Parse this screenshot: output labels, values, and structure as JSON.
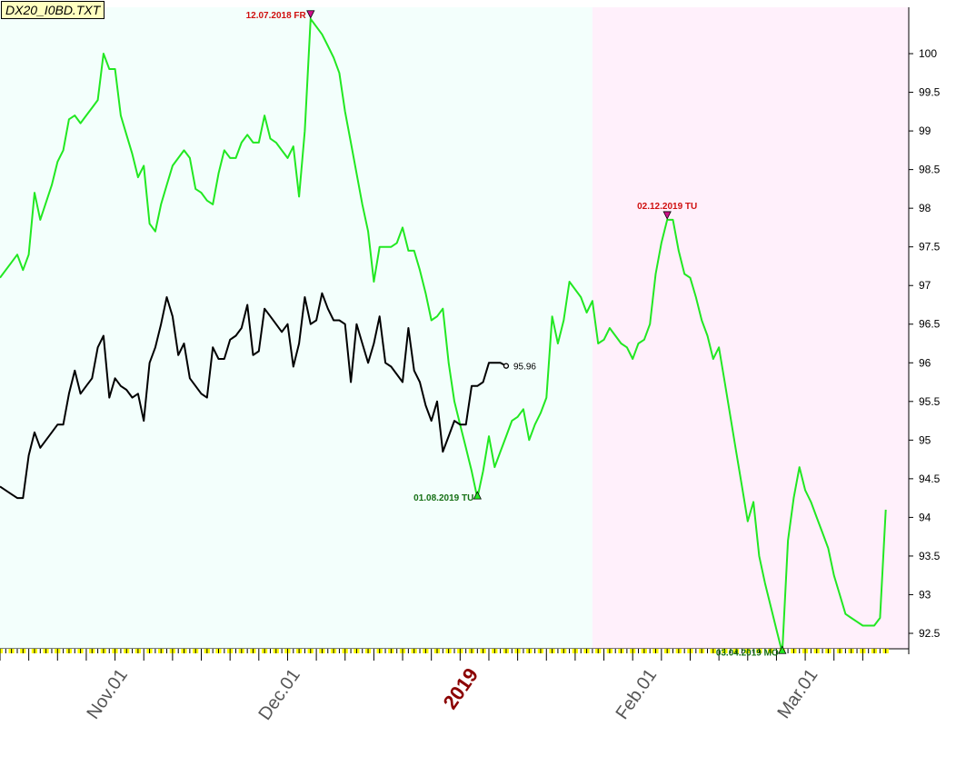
{
  "chart_title": "DX20_I0BD.TXT",
  "colors": {
    "zone_left": "#f3fffc",
    "zone_right": "#fff0fb",
    "green_line": "#22e822",
    "black_line": "#000000",
    "high_label": "#d01010",
    "low_label": "#157015",
    "year_label": "#8b0000",
    "month_label": "#555555",
    "tick_yellow": "#ffff00"
  },
  "chart_data": {
    "type": "line",
    "title": "DX20_I0BD.TXT",
    "xlabel": "",
    "ylabel": "",
    "ylim": [
      92.3,
      100.6
    ],
    "grid": false,
    "y_ticks": [
      "92.5",
      "93",
      "93.5",
      "94",
      "94.5",
      "95",
      "95.5",
      "96",
      "96.5",
      "97",
      "97.5",
      "98",
      "98.5",
      "99",
      "99.5",
      "100"
    ],
    "x_labels": [
      {
        "text": "Nov.01",
        "x": 11,
        "emphasis": false
      },
      {
        "text": "Dec.01",
        "x": 41,
        "emphasis": false
      },
      {
        "text": "2019",
        "x": 72,
        "emphasis": true
      },
      {
        "text": "Feb.01",
        "x": 103,
        "emphasis": false
      },
      {
        "text": "Mar.01",
        "x": 131,
        "emphasis": false
      }
    ],
    "x_range": [
      -10,
      148
    ],
    "shaded_zones": [
      {
        "from": -10,
        "to": 93,
        "color": "zone_left"
      },
      {
        "from": 93,
        "to": 148,
        "color": "zone_right"
      }
    ],
    "series": [
      {
        "color": "green_line",
        "points": [
          [
            -10,
            97.1
          ],
          [
            -8,
            97.3
          ],
          [
            -7,
            97.4
          ],
          [
            -6,
            97.2
          ],
          [
            -5,
            97.4
          ],
          [
            -4,
            98.2
          ],
          [
            -3,
            97.85
          ],
          [
            -1,
            98.3
          ],
          [
            0,
            98.6
          ],
          [
            1,
            98.75
          ],
          [
            2,
            99.15
          ],
          [
            3,
            99.2
          ],
          [
            4,
            99.1
          ],
          [
            5,
            99.2
          ],
          [
            6,
            99.3
          ],
          [
            7,
            99.4
          ],
          [
            8,
            100.0
          ],
          [
            9,
            99.8
          ],
          [
            10,
            99.8
          ],
          [
            11,
            99.2
          ],
          [
            12,
            98.95
          ],
          [
            13,
            98.7
          ],
          [
            14,
            98.4
          ],
          [
            15,
            98.55
          ],
          [
            16,
            97.8
          ],
          [
            17,
            97.7
          ],
          [
            18,
            98.05
          ],
          [
            19,
            98.3
          ],
          [
            20,
            98.55
          ],
          [
            21,
            98.65
          ],
          [
            22,
            98.75
          ],
          [
            23,
            98.65
          ],
          [
            24,
            98.25
          ],
          [
            25,
            98.2
          ],
          [
            26,
            98.1
          ],
          [
            27,
            98.05
          ],
          [
            28,
            98.45
          ],
          [
            29,
            98.75
          ],
          [
            30,
            98.65
          ],
          [
            31,
            98.65
          ],
          [
            32,
            98.85
          ],
          [
            33,
            98.95
          ],
          [
            34,
            98.85
          ],
          [
            35,
            98.85
          ],
          [
            36,
            99.2
          ],
          [
            37,
            98.9
          ],
          [
            38,
            98.85
          ],
          [
            39,
            98.75
          ],
          [
            40,
            98.65
          ],
          [
            41,
            98.8
          ],
          [
            42,
            98.15
          ],
          [
            43,
            99.0
          ],
          [
            44,
            100.45
          ],
          [
            45,
            100.35
          ],
          [
            46,
            100.25
          ],
          [
            47,
            100.1
          ],
          [
            48,
            99.95
          ],
          [
            49,
            99.75
          ],
          [
            50,
            99.25
          ],
          [
            51,
            98.85
          ],
          [
            52,
            98.45
          ],
          [
            53,
            98.05
          ],
          [
            54,
            97.7
          ],
          [
            55,
            97.05
          ],
          [
            56,
            97.5
          ],
          [
            57,
            97.5
          ],
          [
            58,
            97.5
          ],
          [
            59,
            97.55
          ],
          [
            60,
            97.75
          ],
          [
            61,
            97.45
          ],
          [
            62,
            97.45
          ],
          [
            63,
            97.2
          ],
          [
            64,
            96.9
          ],
          [
            65,
            96.55
          ],
          [
            66,
            96.6
          ],
          [
            67,
            96.7
          ],
          [
            68,
            96.0
          ],
          [
            69,
            95.5
          ],
          [
            70,
            95.2
          ],
          [
            71,
            94.9
          ],
          [
            72,
            94.6
          ],
          [
            73,
            94.25
          ],
          [
            74,
            94.6
          ],
          [
            75,
            95.05
          ],
          [
            76,
            94.65
          ],
          [
            77,
            94.85
          ],
          [
            78,
            95.05
          ],
          [
            79,
            95.25
          ],
          [
            80,
            95.3
          ],
          [
            81,
            95.4
          ],
          [
            82,
            95.0
          ],
          [
            83,
            95.2
          ],
          [
            84,
            95.35
          ],
          [
            85,
            95.55
          ],
          [
            86,
            96.6
          ],
          [
            87,
            96.25
          ],
          [
            88,
            96.55
          ],
          [
            89,
            97.05
          ],
          [
            90,
            96.95
          ],
          [
            91,
            96.85
          ],
          [
            92,
            96.65
          ],
          [
            93,
            96.8
          ],
          [
            94,
            96.25
          ],
          [
            95,
            96.3
          ],
          [
            96,
            96.45
          ],
          [
            97,
            96.35
          ],
          [
            98,
            96.25
          ],
          [
            99,
            96.2
          ],
          [
            100,
            96.05
          ],
          [
            101,
            96.25
          ],
          [
            102,
            96.3
          ],
          [
            103,
            96.5
          ],
          [
            104,
            97.15
          ],
          [
            105,
            97.55
          ],
          [
            106,
            97.85
          ],
          [
            107,
            97.85
          ],
          [
            108,
            97.45
          ],
          [
            109,
            97.15
          ],
          [
            110,
            97.1
          ],
          [
            111,
            96.85
          ],
          [
            112,
            96.55
          ],
          [
            113,
            96.35
          ],
          [
            114,
            96.05
          ],
          [
            115,
            96.2
          ],
          [
            116,
            95.75
          ],
          [
            117,
            95.3
          ],
          [
            118,
            94.85
          ],
          [
            119,
            94.4
          ],
          [
            120,
            93.95
          ],
          [
            121,
            94.2
          ],
          [
            122,
            93.5
          ],
          [
            123,
            93.15
          ],
          [
            124,
            92.85
          ],
          [
            125,
            92.55
          ],
          [
            126,
            92.25
          ],
          [
            127,
            93.7
          ],
          [
            128,
            94.25
          ],
          [
            129,
            94.65
          ],
          [
            130,
            94.35
          ],
          [
            131,
            94.2
          ],
          [
            132,
            94.0
          ],
          [
            133,
            93.8
          ],
          [
            134,
            93.6
          ],
          [
            135,
            93.25
          ],
          [
            136,
            93.0
          ],
          [
            137,
            92.75
          ],
          [
            138,
            92.7
          ],
          [
            139,
            92.65
          ],
          [
            140,
            92.6
          ],
          [
            141,
            92.6
          ],
          [
            142,
            92.6
          ],
          [
            143,
            92.7
          ],
          [
            144,
            94.1
          ]
        ]
      },
      {
        "color": "black_line",
        "points": [
          [
            -10,
            94.4
          ],
          [
            -8,
            94.3
          ],
          [
            -7,
            94.25
          ],
          [
            -6,
            94.25
          ],
          [
            -5,
            94.8
          ],
          [
            -4,
            95.1
          ],
          [
            -3,
            94.9
          ],
          [
            -1,
            95.1
          ],
          [
            0,
            95.2
          ],
          [
            1,
            95.2
          ],
          [
            2,
            95.6
          ],
          [
            3,
            95.9
          ],
          [
            4,
            95.6
          ],
          [
            5,
            95.7
          ],
          [
            6,
            95.8
          ],
          [
            7,
            96.2
          ],
          [
            8,
            96.35
          ],
          [
            9,
            95.55
          ],
          [
            10,
            95.8
          ],
          [
            11,
            95.7
          ],
          [
            12,
            95.65
          ],
          [
            13,
            95.55
          ],
          [
            14,
            95.6
          ],
          [
            15,
            95.25
          ],
          [
            16,
            96.0
          ],
          [
            17,
            96.2
          ],
          [
            18,
            96.5
          ],
          [
            19,
            96.85
          ],
          [
            20,
            96.6
          ],
          [
            21,
            96.1
          ],
          [
            22,
            96.25
          ],
          [
            23,
            95.8
          ],
          [
            24,
            95.7
          ],
          [
            25,
            95.6
          ],
          [
            26,
            95.55
          ],
          [
            27,
            96.2
          ],
          [
            28,
            96.05
          ],
          [
            29,
            96.05
          ],
          [
            30,
            96.3
          ],
          [
            31,
            96.35
          ],
          [
            32,
            96.45
          ],
          [
            33,
            96.75
          ],
          [
            34,
            96.1
          ],
          [
            35,
            96.15
          ],
          [
            36,
            96.7
          ],
          [
            37,
            96.6
          ],
          [
            38,
            96.5
          ],
          [
            39,
            96.4
          ],
          [
            40,
            96.5
          ],
          [
            41,
            95.95
          ],
          [
            42,
            96.25
          ],
          [
            43,
            96.85
          ],
          [
            44,
            96.5
          ],
          [
            45,
            96.55
          ],
          [
            46,
            96.9
          ],
          [
            47,
            96.7
          ],
          [
            48,
            96.55
          ],
          [
            49,
            96.55
          ],
          [
            50,
            96.5
          ],
          [
            51,
            95.75
          ],
          [
            52,
            96.5
          ],
          [
            53,
            96.25
          ],
          [
            54,
            96.0
          ],
          [
            55,
            96.25
          ],
          [
            56,
            96.6
          ],
          [
            57,
            96.0
          ],
          [
            58,
            95.95
          ],
          [
            59,
            95.85
          ],
          [
            60,
            95.75
          ],
          [
            61,
            96.45
          ],
          [
            62,
            95.9
          ],
          [
            63,
            95.75
          ],
          [
            64,
            95.45
          ],
          [
            65,
            95.25
          ],
          [
            66,
            95.5
          ],
          [
            67,
            94.85
          ],
          [
            68,
            95.05
          ],
          [
            69,
            95.25
          ],
          [
            70,
            95.2
          ],
          [
            71,
            95.2
          ],
          [
            72,
            95.7
          ],
          [
            73,
            95.7
          ],
          [
            74,
            95.75
          ],
          [
            75,
            96.0
          ],
          [
            76,
            96.0
          ],
          [
            77,
            96.0
          ],
          [
            78,
            95.96
          ]
        ]
      }
    ],
    "last_value": {
      "x": 78,
      "y": 95.96,
      "label": "95.96"
    },
    "annotations": [
      {
        "text": "12.07.2018 FR",
        "x": 44,
        "y": 100.45,
        "kind": "high"
      },
      {
        "text": "01.08.2019 TU",
        "x": 73,
        "y": 94.25,
        "kind": "low"
      },
      {
        "text": "02.12.2019 TU",
        "x": 106,
        "y": 97.85,
        "kind": "high"
      },
      {
        "text": "03.04.2019 MO",
        "x": 126,
        "y": 92.25,
        "kind": "low"
      }
    ]
  }
}
